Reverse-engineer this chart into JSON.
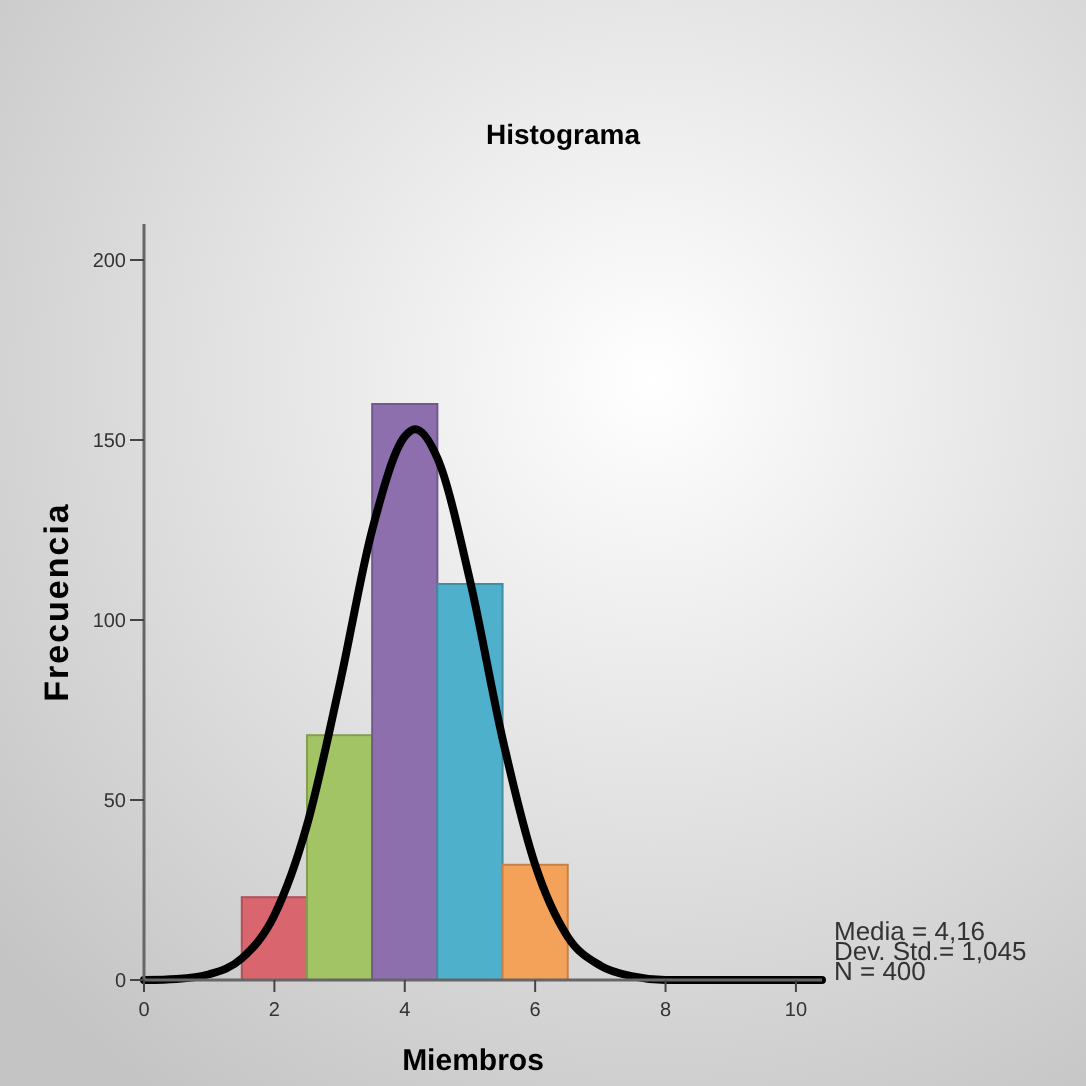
{
  "chart_data": {
    "type": "histogram",
    "title": "Histograma",
    "xlabel": "Miembros",
    "ylabel": "Frecuencia",
    "bins": [
      1.5,
      2.5,
      3.5,
      4.5,
      5.5,
      6.5
    ],
    "values": [
      23,
      68,
      160,
      110,
      32
    ],
    "colors": [
      "#d9666e",
      "#a3c464",
      "#8d6fae",
      "#4fb0cc",
      "#f4a15a"
    ],
    "series": [
      {
        "type": "line",
        "color": "#000000",
        "x": [
          0,
          0.5,
          1,
          1.5,
          2,
          2.5,
          3,
          3.5,
          4,
          4.16,
          4.5,
          5,
          5.5,
          6,
          6.5,
          7,
          7.5,
          8,
          9,
          10.4
        ],
        "values": [
          0,
          0.3,
          1.6,
          6,
          18,
          43,
          82,
          125,
          151,
          153,
          145,
          111,
          67,
          32,
          12,
          4,
          1,
          0,
          0,
          0
        ]
      }
    ],
    "xlim": [
      0,
      10.4
    ],
    "ylim": [
      0,
      210
    ],
    "xticks": [
      0,
      2,
      4,
      6,
      8,
      10
    ],
    "yticks": [
      0,
      50,
      100,
      150,
      200
    ],
    "annotations": [
      "Media = 4,16",
      "Dev. Std.= 1,045",
      "N = 400"
    ]
  }
}
